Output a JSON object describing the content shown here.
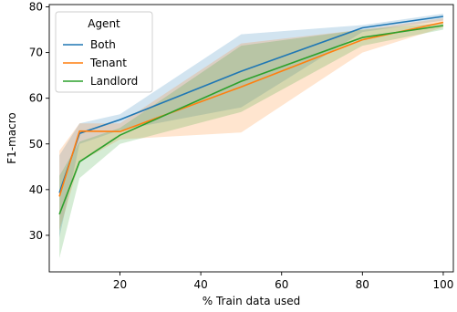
{
  "chart_data": {
    "type": "line",
    "xlabel": "% Train data used",
    "ylabel": "F1-macro",
    "xlim": [
      2.5,
      102.5
    ],
    "ylim": [
      22,
      80.5
    ],
    "xticks": [
      20,
      40,
      60,
      80,
      100
    ],
    "yticks": [
      30,
      40,
      50,
      60,
      70,
      80
    ],
    "grid": false,
    "legend": {
      "title": "Agent",
      "placement": "top-left"
    },
    "x": [
      5,
      10,
      20,
      50,
      80,
      100
    ],
    "series": [
      {
        "name": "Both",
        "color": "#1f77b4",
        "values": [
          39.3,
          52.3,
          55.3,
          65.9,
          75.4,
          77.9
        ],
        "lower": [
          29.5,
          50.0,
          53.0,
          58.0,
          74.5,
          77.0
        ],
        "upper": [
          47.5,
          54.5,
          56.5,
          74.0,
          76.0,
          78.5
        ]
      },
      {
        "name": "Tenant",
        "color": "#ff7f0e",
        "values": [
          38.5,
          52.8,
          52.7,
          62.5,
          72.8,
          76.6
        ],
        "lower": [
          31.0,
          46.0,
          51.0,
          52.5,
          70.0,
          75.5
        ],
        "upper": [
          48.5,
          54.5,
          54.5,
          72.0,
          75.0,
          77.5
        ]
      },
      {
        "name": "Landlord",
        "color": "#2ca02c",
        "values": [
          34.6,
          46.1,
          51.9,
          63.7,
          73.3,
          75.9
        ],
        "lower": [
          25.0,
          42.5,
          50.0,
          57.0,
          71.5,
          75.0
        ],
        "upper": [
          43.0,
          50.5,
          53.5,
          71.5,
          75.0,
          76.5
        ]
      }
    ]
  }
}
